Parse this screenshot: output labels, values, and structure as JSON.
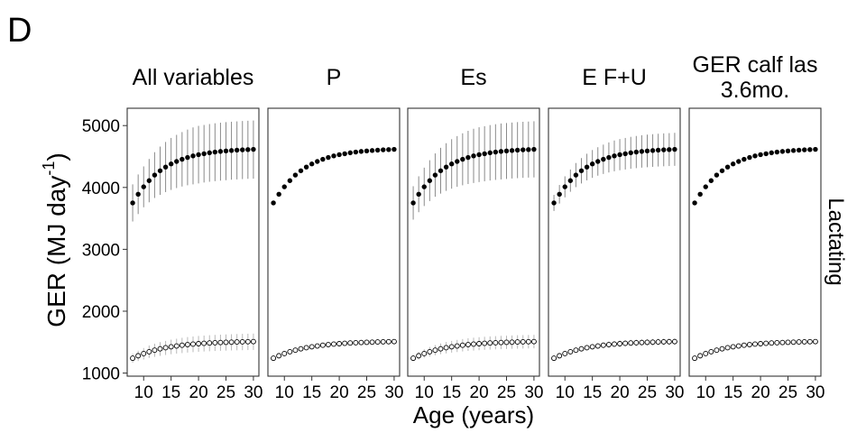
{
  "panel_label": "D",
  "chart_data": {
    "type": "scatter",
    "facet_row_label": "Lactating",
    "xlabel": "Age (years)",
    "ylabel": "GER (MJ day",
    "ylabel_superscript": "-1",
    "ylabel_close": ")",
    "xlim": [
      7,
      31
    ],
    "ylim": [
      950,
      5280
    ],
    "xticks": [
      10,
      15,
      20,
      25,
      30
    ],
    "yticks": [
      1000,
      2000,
      3000,
      4000,
      5000
    ],
    "grid": false,
    "x": [
      8,
      9,
      10,
      11,
      12,
      13,
      14,
      15,
      16,
      17,
      18,
      19,
      20,
      21,
      22,
      23,
      24,
      25,
      26,
      27,
      28,
      29,
      30
    ],
    "facets": [
      {
        "title": "All variables",
        "series": [
          {
            "marker": "filled",
            "values": [
              3750,
              3890,
              4010,
              4110,
              4200,
              4270,
              4330,
              4380,
              4420,
              4455,
              4485,
              4510,
              4530,
              4545,
              4560,
              4572,
              4582,
              4590,
              4597,
              4603,
              4608,
              4612,
              4616
            ],
            "lower": [
              3450,
              3570,
              3680,
              3760,
              3830,
              3880,
              3925,
              3960,
              3990,
              4015,
              4035,
              4050,
              4065,
              4080,
              4092,
              4102,
              4110,
              4118,
              4125,
              4130,
              4135,
              4139,
              4142
            ],
            "upper": [
              4050,
              4210,
              4340,
              4460,
              4570,
              4660,
              4735,
              4800,
              4850,
              4895,
              4935,
              4970,
              4995,
              5010,
              5025,
              5037,
              5047,
              5055,
              5062,
              5068,
              5074,
              5078,
              5082
            ]
          },
          {
            "marker": "open",
            "values": [
              1240,
              1280,
              1315,
              1345,
              1370,
              1392,
              1410,
              1425,
              1438,
              1450,
              1460,
              1468,
              1475,
              1481,
              1486,
              1490,
              1494,
              1497,
              1500,
              1503,
              1505,
              1507,
              1509
            ],
            "lower": [
              1170,
              1195,
              1220,
              1245,
              1262,
              1278,
              1292,
              1305,
              1315,
              1323,
              1331,
              1338,
              1344,
              1349,
              1353,
              1357,
              1360,
              1363,
              1366,
              1368,
              1370,
              1372,
              1374
            ],
            "upper": [
              1310,
              1360,
              1405,
              1445,
              1475,
              1500,
              1520,
              1540,
              1555,
              1570,
              1582,
              1592,
              1600,
              1606,
              1612,
              1617,
              1621,
              1625,
              1628,
              1631,
              1634,
              1636,
              1638
            ]
          }
        ]
      },
      {
        "title": "P",
        "series": [
          {
            "marker": "filled",
            "values": [
              3750,
              3890,
              4010,
              4110,
              4200,
              4270,
              4330,
              4380,
              4420,
              4455,
              4485,
              4510,
              4530,
              4545,
              4560,
              4572,
              4582,
              4590,
              4597,
              4603,
              4608,
              4612,
              4616
            ]
          },
          {
            "marker": "open",
            "values": [
              1240,
              1280,
              1315,
              1345,
              1370,
              1392,
              1410,
              1425,
              1438,
              1450,
              1460,
              1468,
              1475,
              1481,
              1486,
              1490,
              1494,
              1497,
              1500,
              1503,
              1505,
              1507,
              1509
            ]
          }
        ]
      },
      {
        "title": "Es",
        "series": [
          {
            "marker": "filled",
            "values": [
              3750,
              3890,
              4010,
              4110,
              4200,
              4270,
              4330,
              4380,
              4420,
              4455,
              4485,
              4510,
              4530,
              4545,
              4560,
              4572,
              4582,
              4590,
              4597,
              4603,
              4608,
              4612,
              4616
            ],
            "lower": [
              3480,
              3600,
              3700,
              3780,
              3850,
              3900,
              3945,
              3980,
              4010,
              4035,
              4055,
              4072,
              4087,
              4100,
              4112,
              4122,
              4130,
              4138,
              4145,
              4150,
              4155,
              4159,
              4162
            ],
            "upper": [
              4020,
              4180,
              4320,
              4440,
              4550,
              4640,
              4715,
              4780,
              4830,
              4875,
              4915,
              4948,
              4973,
              4990,
              5008,
              5022,
              5034,
              5042,
              5049,
              5056,
              5061,
              5065,
              5070
            ]
          },
          {
            "marker": "open",
            "values": [
              1240,
              1280,
              1315,
              1345,
              1370,
              1392,
              1410,
              1425,
              1438,
              1450,
              1460,
              1468,
              1475,
              1481,
              1486,
              1490,
              1494,
              1497,
              1500,
              1503,
              1505,
              1507,
              1509
            ],
            "lower": [
              1190,
              1220,
              1245,
              1268,
              1288,
              1305,
              1318,
              1330,
              1340,
              1350,
              1358,
              1364,
              1370,
              1375,
              1379,
              1383,
              1386,
              1389,
              1392,
              1394,
              1396,
              1398,
              1400
            ],
            "upper": [
              1290,
              1340,
              1385,
              1422,
              1452,
              1479,
              1502,
              1520,
              1536,
              1550,
              1562,
              1572,
              1580,
              1587,
              1593,
              1597,
              1602,
              1605,
              1608,
              1612,
              1614,
              1616,
              1618
            ]
          }
        ]
      },
      {
        "title": "E F+U",
        "series": [
          {
            "marker": "filled",
            "values": [
              3750,
              3890,
              4010,
              4110,
              4200,
              4270,
              4330,
              4380,
              4420,
              4455,
              4485,
              4510,
              4530,
              4545,
              4560,
              4572,
              4582,
              4590,
              4597,
              4603,
              4608,
              4612,
              4616
            ],
            "lower": [
              3620,
              3740,
              3840,
              3930,
              4005,
              4065,
              4115,
              4155,
              4190,
              4218,
              4242,
              4262,
              4278,
              4290,
              4302,
              4312,
              4320,
              4327,
              4333,
              4338,
              4342,
              4346,
              4349
            ],
            "upper": [
              3880,
              4040,
              4180,
              4290,
              4395,
              4475,
              4545,
              4605,
              4650,
              4692,
              4728,
              4758,
              4782,
              4800,
              4818,
              4832,
              4844,
              4853,
              4861,
              4868,
              4874,
              4878,
              4883
            ]
          },
          {
            "marker": "open",
            "values": [
              1240,
              1280,
              1315,
              1345,
              1370,
              1392,
              1410,
              1425,
              1438,
              1450,
              1460,
              1468,
              1475,
              1481,
              1486,
              1490,
              1494,
              1497,
              1500,
              1503,
              1505,
              1507,
              1509
            ],
            "lower": [
              1215,
              1250,
              1282,
              1308,
              1330,
              1350,
              1366,
              1380,
              1392,
              1402,
              1411,
              1418,
              1424,
              1430,
              1434,
              1438,
              1441,
              1444,
              1447,
              1449,
              1451,
              1453,
              1455
            ],
            "upper": [
              1265,
              1310,
              1348,
              1382,
              1410,
              1434,
              1454,
              1470,
              1484,
              1498,
              1509,
              1518,
              1526,
              1532,
              1538,
              1542,
              1547,
              1550,
              1553,
              1557,
              1559,
              1561,
              1563
            ]
          }
        ]
      },
      {
        "title": "GER calf las 3.6mo.",
        "title_lines": [
          "GER calf las",
          "3.6mo."
        ],
        "series": [
          {
            "marker": "filled",
            "values": [
              3750,
              3890,
              4010,
              4110,
              4200,
              4270,
              4330,
              4380,
              4420,
              4455,
              4485,
              4510,
              4530,
              4545,
              4560,
              4572,
              4582,
              4590,
              4597,
              4603,
              4608,
              4612,
              4616
            ]
          },
          {
            "marker": "open",
            "values": [
              1240,
              1280,
              1315,
              1345,
              1370,
              1392,
              1410,
              1425,
              1438,
              1450,
              1460,
              1468,
              1475,
              1481,
              1486,
              1490,
              1494,
              1497,
              1500,
              1503,
              1505,
              1507,
              1509
            ]
          }
        ]
      }
    ]
  }
}
